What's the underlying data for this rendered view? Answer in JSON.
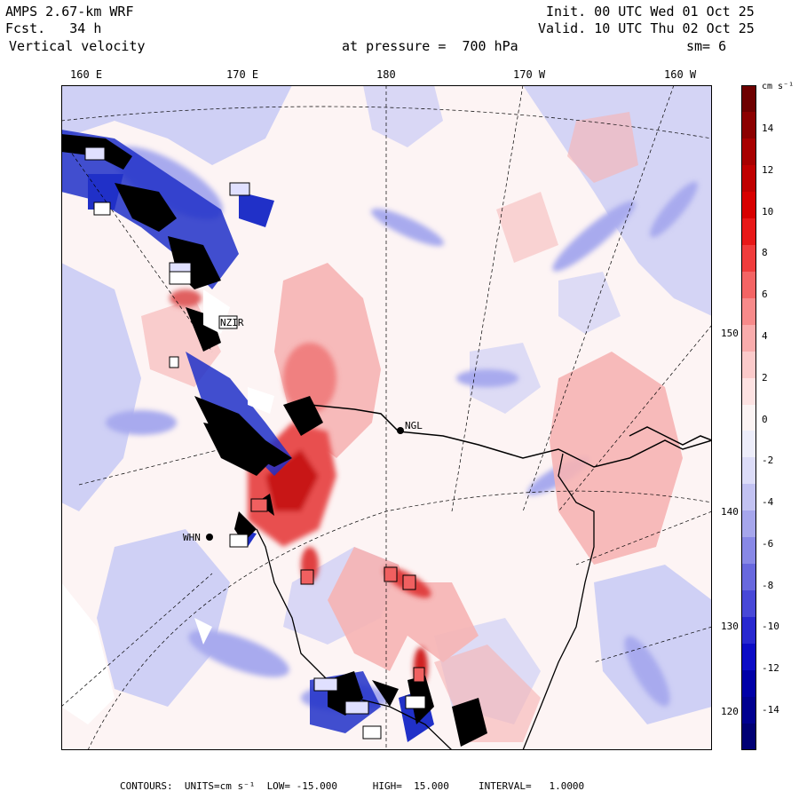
{
  "header": {
    "model": "AMPS 2.67-km WRF",
    "fcst": "Fcst.   34 h",
    "field": "Vertical velocity",
    "init": "Init. 00 UTC Wed 01 Oct 25",
    "valid": "Valid. 10 UTC Thu 02 Oct 25",
    "pressure": "at pressure =  700 hPa",
    "smoothing": "sm= 6"
  },
  "lon_labels": [
    "160 E",
    "170 E",
    "180",
    "170 W",
    "160 W"
  ],
  "lat_labels": [
    "150 W",
    "140 W",
    "130 W",
    "120 W"
  ],
  "stations": [
    "NGL",
    "WHN",
    "NZIR"
  ],
  "colorbar": {
    "units": "cm s⁻¹",
    "ticks": [
      "14",
      "12",
      "10",
      "8",
      "6",
      "4",
      "2",
      "0",
      "-2",
      "-4",
      "-6",
      "-8",
      "-10",
      "-12",
      "-14"
    ],
    "colors": [
      "#6e0000",
      "#8c0000",
      "#a80000",
      "#c00000",
      "#d80000",
      "#e81818",
      "#f03c3c",
      "#f46464",
      "#f78a8a",
      "#f9acac",
      "#fbcaca",
      "#fde2e2",
      "#fbf3f3",
      "#ededfa",
      "#dcdcf8",
      "#c2c2f2",
      "#a6a6ec",
      "#8888e6",
      "#6868de",
      "#4848d8",
      "#2828d0",
      "#0c0cc6",
      "#0000a8",
      "#000090",
      "#000074"
    ]
  },
  "footer": "CONTOURS:  UNITS=cm s⁻¹  LOW= -15.000      HIGH=  15.000     INTERVAL=   1.0000",
  "colors": {
    "neutral": "#fdf6f6",
    "up_light": "#f9b0b0",
    "up_strong": "#e02020",
    "down_light": "#c8c8f4",
    "down_strong": "#1010c0",
    "land_mask": "#ffffff"
  }
}
